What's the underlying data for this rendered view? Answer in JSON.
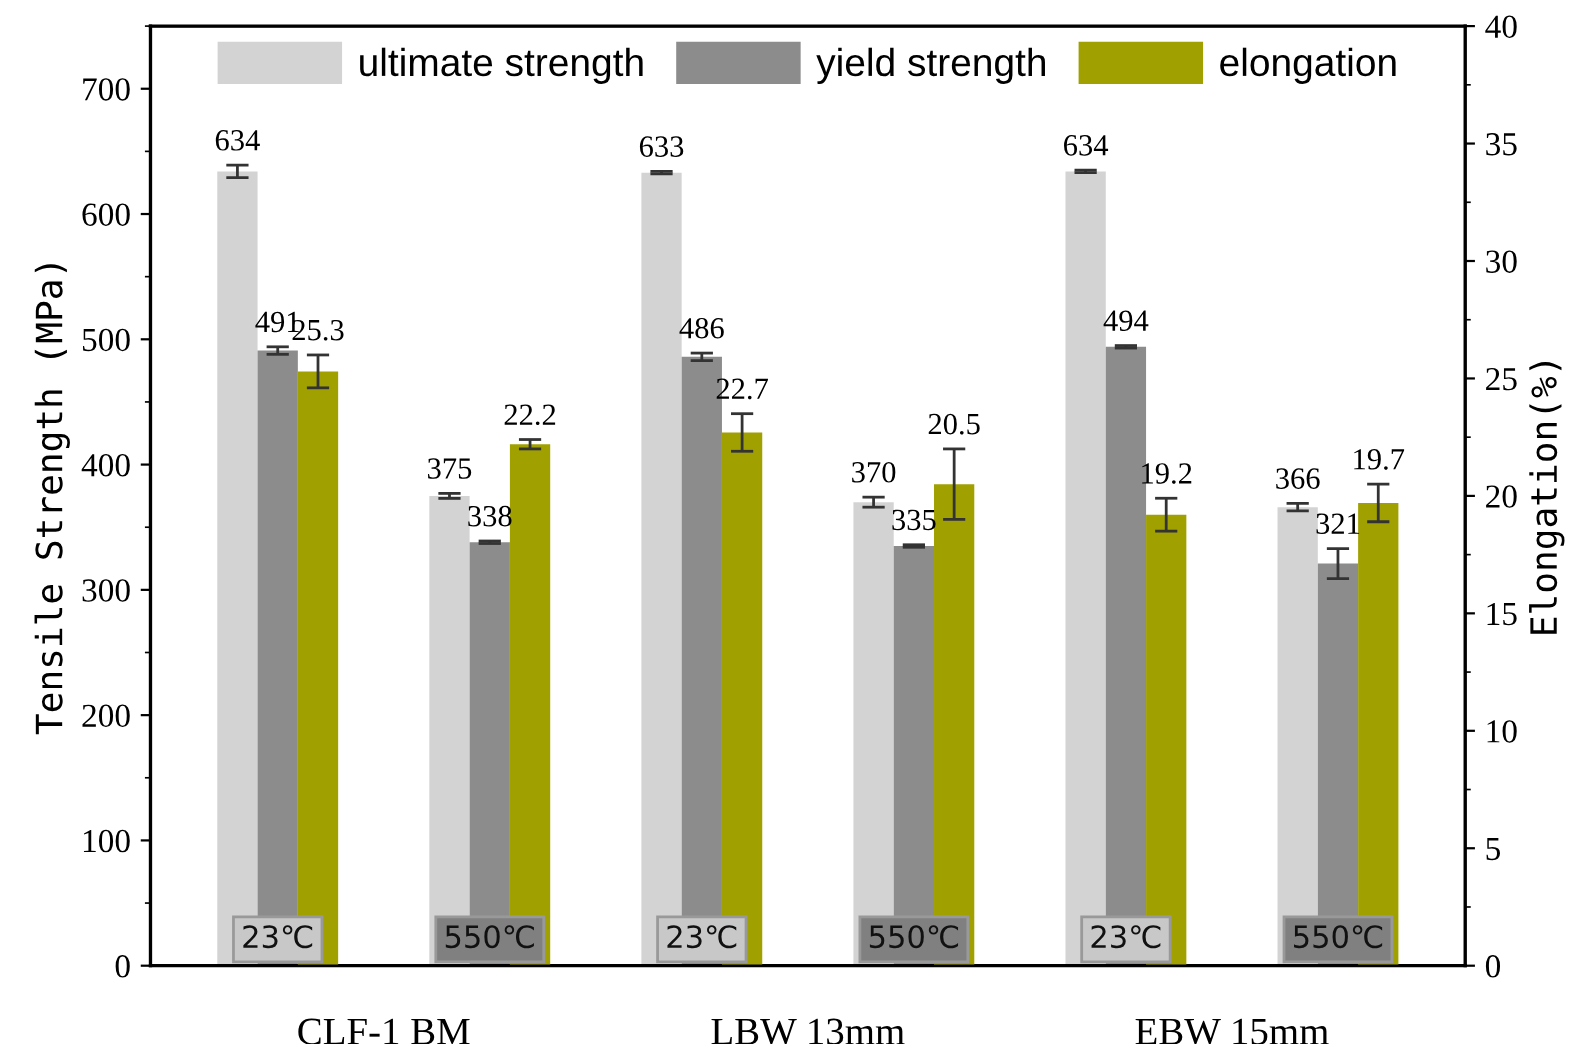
{
  "chart_data": {
    "type": "bar",
    "categories": [
      "23℃",
      "550℃",
      "23℃",
      "550℃",
      "23℃",
      "550℃"
    ],
    "ylabel": "Tensile Strength (MPa)",
    "y2label": "Elongation(%)",
    "ylim": [
      0,
      750
    ],
    "yticks": [
      0,
      100,
      200,
      300,
      400,
      500,
      600,
      700
    ],
    "y2lim": [
      0,
      40
    ],
    "y2ticks": [
      0,
      5,
      10,
      15,
      20,
      25,
      30,
      35,
      40
    ],
    "series": [
      {
        "name": "ultimate strength",
        "color": "#d3d3d3",
        "values": [
          634,
          375,
          633,
          370,
          634,
          366
        ],
        "errors": [
          5,
          2,
          1,
          4,
          1,
          3
        ]
      },
      {
        "name": "yield strength",
        "color": "#8c8c8c",
        "values": [
          491,
          338,
          486,
          335,
          494,
          321
        ],
        "errors": [
          3,
          1,
          3,
          1,
          1,
          12
        ]
      },
      {
        "name": "elongation",
        "color": "#a0a000",
        "axis": "y2",
        "values": [
          25.3,
          22.2,
          22.7,
          20.5,
          19.2,
          19.7
        ],
        "errors": [
          0.7,
          0.2,
          0.8,
          1.5,
          0.7,
          0.8
        ]
      }
    ],
    "data_labels": true,
    "legend": "top",
    "grid": false,
    "annotations": [
      "CLF-1 BM",
      "LBW 13mm",
      "EBW 15mm"
    ]
  }
}
